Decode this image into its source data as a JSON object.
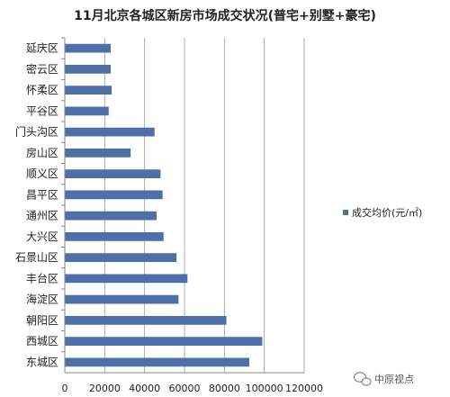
{
  "chart_data": {
    "type": "bar",
    "orientation": "horizontal",
    "title": "11月北京各城区新房市场成交状况(普宅+别墅+豪宅)",
    "categories": [
      "延庆区",
      "密云区",
      "怀柔区",
      "平谷区",
      "门头沟区",
      "房山区",
      "顺义区",
      "昌平区",
      "通州区",
      "大兴区",
      "石景山区",
      "丰台区",
      "海淀区",
      "朝阳区",
      "西城区",
      "东城区"
    ],
    "series": [
      {
        "name": "成交均价(元/㎡)",
        "color": "#4f6fa8",
        "values": [
          23000,
          23000,
          23500,
          22000,
          45000,
          33000,
          48000,
          49000,
          46000,
          49500,
          56000,
          61500,
          57000,
          81000,
          99000,
          92500
        ]
      }
    ],
    "xlim": [
      0,
      120000
    ],
    "xticks": [
      "0",
      "20000",
      "40000",
      "60000",
      "80000",
      "100000",
      "120000"
    ],
    "grid": true,
    "legend_position": "right"
  },
  "watermark": {
    "text": "中原视点",
    "icon": "wechat-icon"
  }
}
